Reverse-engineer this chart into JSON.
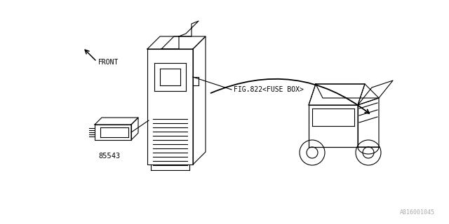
{
  "bg_color": "#ffffff",
  "line_color": "#000000",
  "text_color": "#000000",
  "fig_width": 6.4,
  "fig_height": 3.2,
  "dpi": 100,
  "watermark": "A816001045",
  "front_label": "FRONT",
  "part_label": "85543",
  "fuse_label": "FIG.822<FUSE BOX>",
  "line_width": 0.8
}
